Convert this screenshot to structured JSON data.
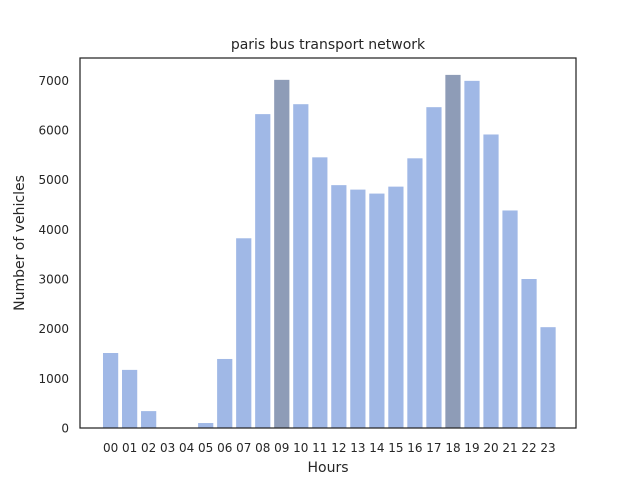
{
  "chart_data": {
    "type": "bar",
    "title": "paris bus transport network",
    "xlabel": "Hours",
    "ylabel": "Number of vehicles",
    "categories": [
      "00",
      "01",
      "02",
      "03",
      "04",
      "05",
      "06",
      "07",
      "08",
      "09",
      "10",
      "11",
      "12",
      "13",
      "14",
      "15",
      "16",
      "17",
      "18",
      "19",
      "20",
      "21",
      "22",
      "23"
    ],
    "values": [
      1510,
      1170,
      340,
      0,
      0,
      100,
      1390,
      3820,
      6320,
      7010,
      6520,
      5450,
      4890,
      4800,
      4720,
      4860,
      5430,
      6460,
      7110,
      6990,
      5910,
      4380,
      3000,
      2030
    ],
    "highlighted_categories": [
      "09",
      "18"
    ],
    "ylim": [
      0,
      7450
    ],
    "yticks": [
      0,
      1000,
      2000,
      3000,
      4000,
      5000,
      6000,
      7000
    ],
    "grid": false,
    "colors": {
      "bar": "#a0b8e6",
      "highlight": "#8e9cb7",
      "axis": "#262626",
      "text": "#262626"
    }
  }
}
